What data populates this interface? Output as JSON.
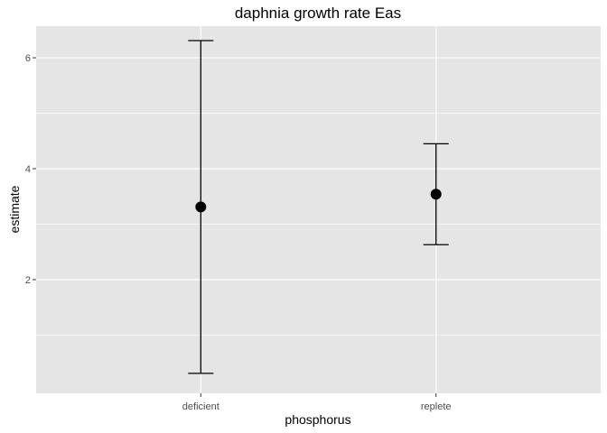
{
  "chart_data": {
    "type": "scatter",
    "title": "daphnia growth rate Eas",
    "xlabel": "phosphorus",
    "ylabel": "estimate",
    "categories": [
      "deficient",
      "replete"
    ],
    "points": [
      {
        "category": "deficient",
        "estimate": 3.31,
        "lower": 0.31,
        "upper": 6.31
      },
      {
        "category": "replete",
        "estimate": 3.54,
        "lower": 2.63,
        "upper": 4.45
      }
    ],
    "yticks": [
      2,
      4,
      6
    ],
    "ylim": [
      -0.05,
      6.57
    ],
    "grid": true,
    "legend": "none",
    "colors": {
      "panel": "#e5e5e5",
      "grid": "#ffffff",
      "marks": "#000000"
    }
  }
}
